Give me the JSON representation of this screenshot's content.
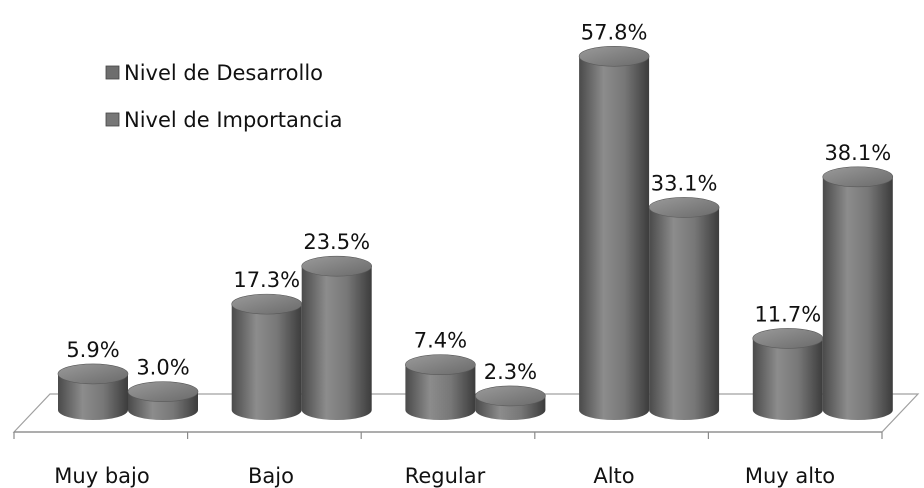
{
  "chart_data": {
    "type": "bar",
    "style": "3d-cylinder",
    "categories": [
      "Muy bajo",
      "Bajo",
      "Regular",
      "Alto",
      "Muy alto"
    ],
    "series": [
      {
        "name": "Nivel de Desarrollo",
        "values": [
          5.9,
          17.3,
          7.4,
          57.8,
          11.7
        ],
        "labels": [
          "5.9%",
          "17.3%",
          "7.4%",
          "57.8%",
          "11.7%"
        ],
        "color": "#6e6e6e"
      },
      {
        "name": "Nivel de Importancia",
        "values": [
          3.0,
          23.5,
          2.3,
          33.1,
          38.1
        ],
        "labels": [
          "3.0%",
          "23.5%",
          "2.3%",
          "33.1%",
          "38.1%"
        ],
        "color": "#777777"
      }
    ],
    "title": "",
    "xlabel": "",
    "ylabel": "",
    "ylim": [
      0,
      60
    ],
    "grid": false,
    "legend": "top-left"
  }
}
